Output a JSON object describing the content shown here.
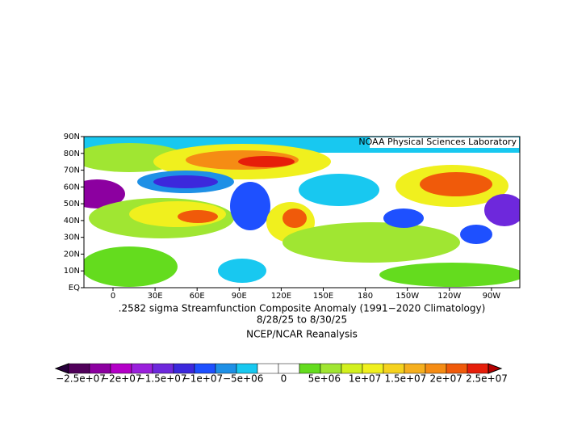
{
  "header": {
    "credit": "NOAA Physical Sciences Laboratory"
  },
  "map": {
    "lat_labels": [
      "90N",
      "80N",
      "70N",
      "60N",
      "50N",
      "40N",
      "30N",
      "20N",
      "10N",
      "EQ"
    ],
    "lon_labels": [
      "0",
      "30E",
      "60E",
      "90E",
      "120E",
      "150E",
      "180",
      "150W",
      "120W",
      "90W"
    ]
  },
  "caption": {
    "line1": ".2582 sigma Streamfunction  Composite Anomaly (1991−2020 Climatology)",
    "line2": "8/28/25  to 8/30/25",
    "line3": "NCEP/NCAR Reanalysis"
  },
  "colorbar": {
    "labels": [
      "−2.5e+07",
      "−2e+07",
      "−1.5e+07",
      "−1e+07",
      "−5e+06",
      "0",
      "5e+06",
      "1e+07",
      "1.5e+07",
      "2e+07",
      "2.5e+07"
    ],
    "colors": [
      "#50005a",
      "#8c00a0",
      "#b400c8",
      "#9a20dc",
      "#6e28dc",
      "#3c28dc",
      "#1e50ff",
      "#1e90e6",
      "#18c8f0",
      "#ffffff",
      "#ffffff",
      "#64dc1e",
      "#a0e632",
      "#d2f01e",
      "#f0f01e",
      "#f5d21e",
      "#f5af1e",
      "#f58c14",
      "#f05a0a",
      "#e61e0a"
    ],
    "low_color": "#28003c",
    "high_color": "#b40000"
  }
}
